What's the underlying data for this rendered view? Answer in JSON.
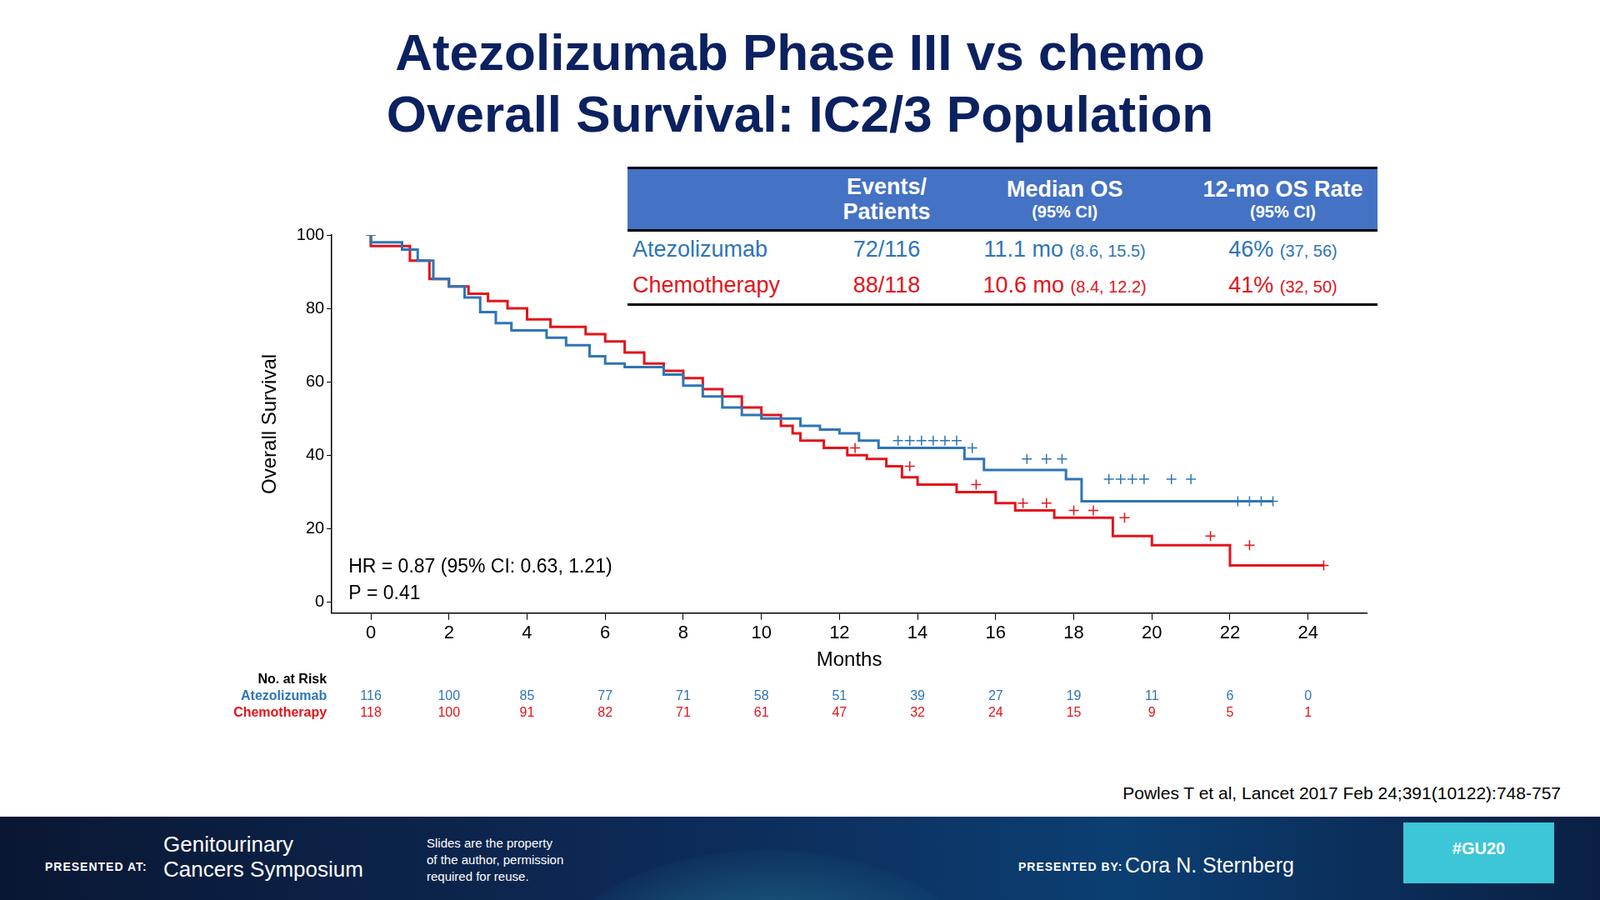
{
  "slide": {
    "title": [
      "Atezolizumab Phase III vs chemo",
      "Overall Survival: IC2/3 Population"
    ],
    "table": {
      "header": [
        {
          "main": [
            "Events/",
            "Patients"
          ],
          "sub": null
        },
        {
          "main": [
            "Median OS"
          ],
          "sub": "(95% CI)"
        },
        {
          "main": [
            "12-mo OS Rate"
          ],
          "sub": "(95% CI)"
        }
      ],
      "rows": [
        {
          "name": "Atezolizumab",
          "color": "#2e75b6",
          "cells": [
            {
              "main": "72/116",
              "ci": null
            },
            {
              "main": "11.1 mo",
              "ci": "(8.6, 15.5)"
            },
            {
              "main": "46%",
              "ci": "(37, 56)"
            }
          ]
        },
        {
          "name": "Chemotherapy",
          "color": "#e3141b",
          "cells": [
            {
              "main": "88/118",
              "ci": null
            },
            {
              "main": "10.6 mo",
              "ci": "(8.4, 12.2)"
            },
            {
              "main": "41%",
              "ci": "(32, 50)"
            }
          ]
        }
      ]
    },
    "citation": "Powles T et al, Lancet 2017 Feb 24;391(10122):748-757",
    "footer": {
      "presented_at_label": "PRESENTED AT:",
      "meeting": [
        "Genitourinary",
        "Cancers Symposium"
      ],
      "notice": [
        "Slides are the property",
        "of the author, permission",
        "required for reuse."
      ],
      "presented_by_label": "PRESENTED BY:",
      "presenter": "Cora N. Sternberg",
      "hashtag": "#GU20"
    }
  },
  "chart_data": {
    "type": "line",
    "x_label": "Months",
    "y_label": "Overall Survival",
    "xlim": [
      -1,
      25.5
    ],
    "xticks": [
      0,
      2,
      4,
      6,
      8,
      10,
      12,
      14,
      16,
      18,
      20,
      22,
      24
    ],
    "ylim": [
      -3,
      100
    ],
    "yticks": [
      0,
      20,
      40,
      60,
      80,
      100
    ],
    "grid": false,
    "annotations": [
      "HR = 0.87 (95% CI: 0.63, 1.21)",
      "P = 0.41"
    ],
    "at_risk": {
      "title": "No. at Risk",
      "x": [
        0,
        2,
        4,
        6,
        8,
        10,
        12,
        14,
        16,
        18,
        20,
        22,
        24
      ]
    },
    "series": [
      {
        "name": "Atezolizumab",
        "color": "#2e75b6",
        "line_style": "stepped",
        "marker": "cross",
        "x": [
          0,
          0.8,
          1.2,
          1.6,
          2,
          2.4,
          2.8,
          3.2,
          3.6,
          4.5,
          5,
          5.6,
          6,
          6.5,
          7.5,
          8,
          8.5,
          9,
          9.5,
          10,
          11,
          11.5,
          12,
          12.5,
          13,
          15.2,
          15.7,
          17.8,
          18.2,
          22,
          23.1
        ],
        "values": [
          100,
          98,
          96,
          93,
          88,
          86,
          83,
          79,
          76,
          74,
          72,
          70,
          67,
          65,
          64,
          62,
          59,
          56,
          53,
          51,
          50,
          48,
          47,
          46,
          44,
          42,
          39,
          36,
          33.5,
          27.5,
          27.5
        ],
        "censored_x": [
          0,
          13.5,
          13.8,
          14.1,
          14.4,
          14.7,
          15,
          15.4,
          16.8,
          17.3,
          17.7,
          18.9,
          19.2,
          19.5,
          19.8,
          20.5,
          21,
          22.2,
          22.5,
          22.8,
          23.1
        ],
        "censored_values": [
          100,
          44,
          44,
          44,
          44,
          44,
          44,
          42,
          39,
          39,
          39,
          33.5,
          33.5,
          33.5,
          33.5,
          33.5,
          33.5,
          27.5,
          27.5,
          27.5,
          27.5
        ],
        "at_risk": [
          116,
          100,
          85,
          77,
          71,
          58,
          51,
          39,
          27,
          19,
          11,
          6,
          0
        ]
      },
      {
        "name": "Chemotherapy",
        "color": "#e3141b",
        "line_style": "stepped",
        "marker": "cross",
        "x": [
          0,
          1,
          1.5,
          2,
          2.5,
          3,
          3.5,
          4,
          4.6,
          5.5,
          6,
          6.5,
          7,
          7.5,
          8,
          8.5,
          9,
          9.5,
          10,
          10.5,
          10.8,
          11,
          11.6,
          12.2,
          12.7,
          13.2,
          13.6,
          14,
          15,
          16,
          16.5,
          17.5,
          19,
          20,
          22,
          22.8,
          24.4
        ],
        "values": [
          100,
          97,
          93,
          88,
          86,
          84,
          82,
          80,
          77,
          75,
          73,
          71,
          68,
          65,
          63,
          61,
          58,
          56,
          53,
          51,
          48,
          46,
          44,
          42,
          40,
          39,
          37,
          34,
          32,
          30,
          27,
          25,
          23,
          18,
          15.5,
          10,
          10
        ],
        "censored_x": [
          0,
          12.4,
          13.8,
          15.5,
          16.7,
          17.3,
          18,
          18.5,
          19.3,
          21.5,
          22.5,
          24.4
        ],
        "censored_values": [
          100,
          42,
          37,
          32,
          27,
          27,
          25,
          25,
          23,
          18,
          15.5,
          10
        ],
        "at_risk": [
          118,
          100,
          91,
          82,
          71,
          61,
          47,
          32,
          24,
          15,
          9,
          5,
          1
        ]
      }
    ]
  }
}
